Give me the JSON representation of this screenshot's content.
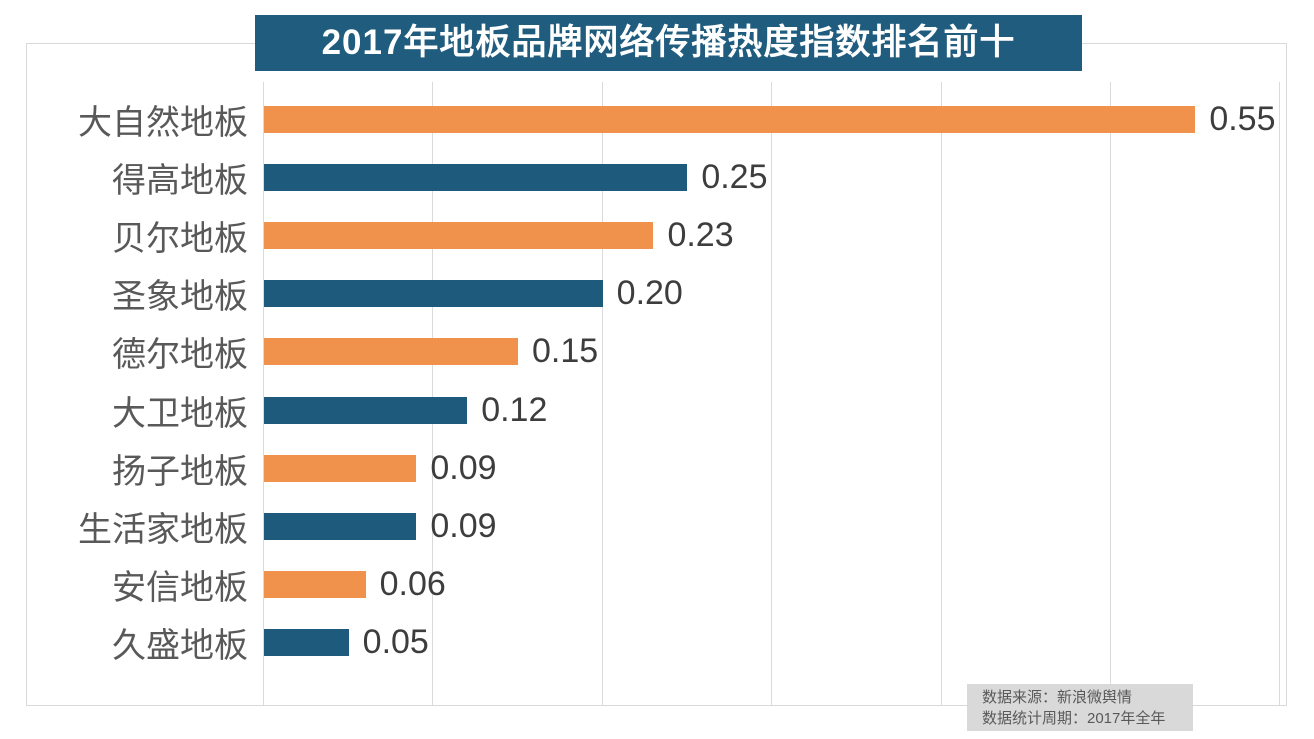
{
  "chart_data": {
    "type": "bar",
    "orientation": "horizontal",
    "title": "2017年地板品牌网络传播热度指数排名前十",
    "categories": [
      "大自然地板",
      "得高地板",
      "贝尔地板",
      "圣象地板",
      "德尔地板",
      "大卫地板",
      "扬子地板",
      "生活家地板",
      "安信地板",
      "久盛地板"
    ],
    "values": [
      0.55,
      0.25,
      0.23,
      0.2,
      0.15,
      0.12,
      0.09,
      0.09,
      0.06,
      0.05
    ],
    "value_labels": [
      "0.55",
      "0.25",
      "0.23",
      "0.20",
      "0.15",
      "0.12",
      "0.09",
      "0.09",
      "0.06",
      "0.05"
    ],
    "xlim": [
      0,
      0.6
    ],
    "gridline_interval": 0.1,
    "grid": true,
    "legend": "none",
    "bar_colors_alternating": [
      "#F0914C",
      "#1E5A7B"
    ],
    "data_labels": "outside-end"
  },
  "footer": {
    "line1": "数据来源：新浪微舆情",
    "line2": "数据统计周期：2017年全年"
  },
  "colors": {
    "banner_background": "#1F5C7E",
    "banner_text": "#FFFFFF",
    "orange_bar": "#F0914C",
    "blue_bar": "#1E5A7B",
    "gridline": "#DADADA",
    "frame_border": "#D9D9D9",
    "category_label": "#595959",
    "value_label": "#3D3D3D",
    "footer_background": "#D9D9D9",
    "footer_text": "#595959"
  }
}
